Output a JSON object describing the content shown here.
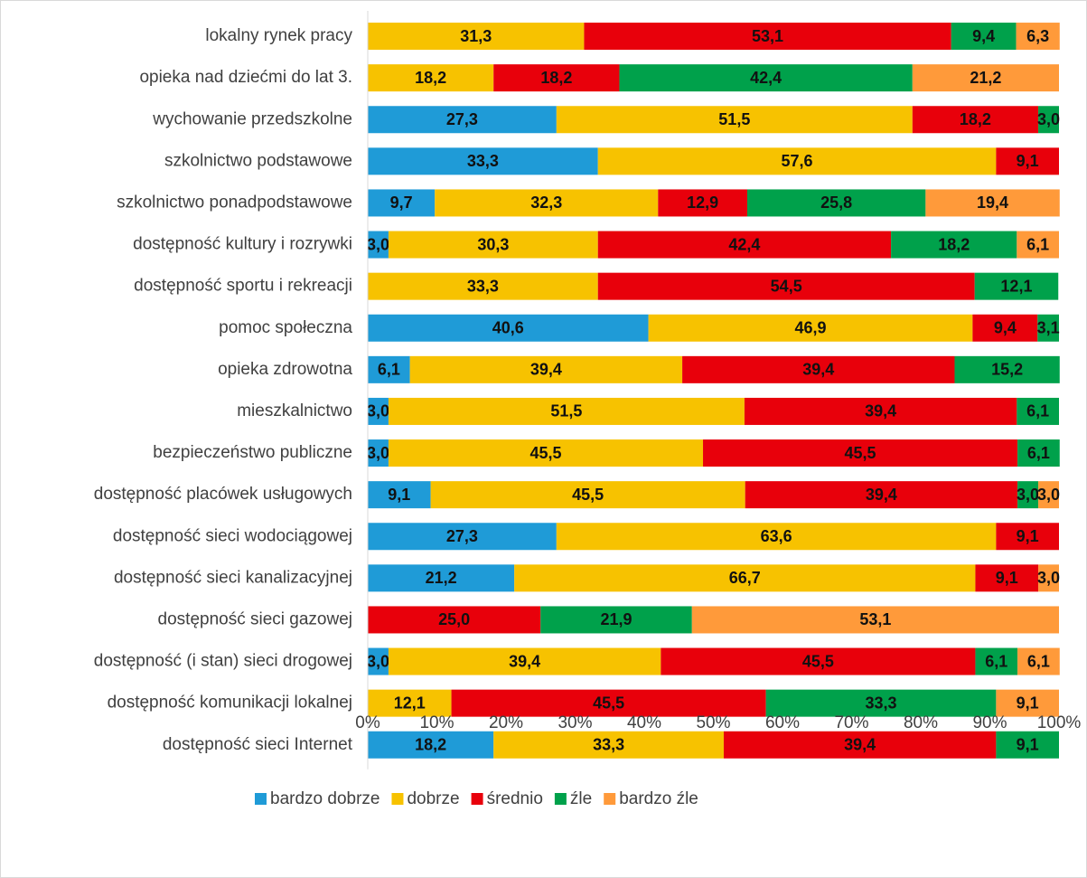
{
  "chart_data": {
    "type": "stacked_bar_horizontal",
    "categories": [
      "lokalny rynek pracy",
      "opieka nad dziećmi do lat 3.",
      "wychowanie przedszkolne",
      "szkolnictwo podstawowe",
      "szkolnictwo ponadpodstawowe",
      "dostępność kultury i rozrywki",
      "dostępność sportu i rekreacji",
      "pomoc społeczna",
      "opieka zdrowotna",
      "mieszkalnictwo",
      "bezpieczeństwo publiczne",
      "dostępność placówek usługowych",
      "dostępność sieci wodociągowej",
      "dostępność sieci kanalizacyjnej",
      "dostępność sieci gazowej",
      "dostępność (i stan) sieci drogowej",
      "dostępność komunikacji lokalnej",
      "dostępność sieci Internet"
    ],
    "series": [
      {
        "name": "bardzo dobrze",
        "color": "#1f9bd7",
        "values": [
          null,
          null,
          27.3,
          33.3,
          9.7,
          3.0,
          null,
          40.6,
          6.1,
          3.0,
          3.0,
          9.1,
          27.3,
          21.2,
          null,
          3.0,
          null,
          18.2
        ],
        "value_labels": [
          null,
          null,
          "27,3",
          "33,3",
          "9,7",
          "3,0",
          null,
          "40,6",
          "6,1",
          "3,0",
          "3,0",
          "9,1",
          "27,3",
          "21,2",
          null,
          "3,0",
          null,
          "18,2"
        ]
      },
      {
        "name": "dobrze",
        "color": "#f7c200",
        "values": [
          31.3,
          18.2,
          51.5,
          57.6,
          32.3,
          30.3,
          33.3,
          46.9,
          39.4,
          51.5,
          45.5,
          45.5,
          63.6,
          66.7,
          null,
          39.4,
          12.1,
          33.3
        ],
        "value_labels": [
          "31,3",
          "18,2",
          "51,5",
          "57,6",
          "32,3",
          "30,3",
          "33,3",
          "46,9",
          "39,4",
          "51,5",
          "45,5",
          "45,5",
          "63,6",
          "66,7",
          null,
          "39,4",
          "12,1",
          "33,3"
        ]
      },
      {
        "name": "średnio",
        "color": "#e8000b",
        "values": [
          53.1,
          18.2,
          18.2,
          9.1,
          12.9,
          42.4,
          54.5,
          9.4,
          39.4,
          39.4,
          45.5,
          39.4,
          9.1,
          9.1,
          25.0,
          45.5,
          45.5,
          39.4
        ],
        "value_labels": [
          "53,1",
          "18,2",
          "18,2",
          "9,1",
          "12,9",
          "42,4",
          "54,5",
          "9,4",
          "39,4",
          "39,4",
          "45,5",
          "39,4",
          "9,1",
          "9,1",
          "25,0",
          "45,5",
          "45,5",
          "39,4"
        ]
      },
      {
        "name": "źle",
        "color": "#00a14b",
        "values": [
          9.4,
          42.4,
          3.0,
          null,
          25.8,
          18.2,
          12.1,
          3.1,
          15.2,
          6.1,
          6.1,
          3.0,
          null,
          null,
          21.9,
          6.1,
          33.3,
          9.1
        ],
        "value_labels": [
          "9,4",
          "42,4",
          "3,0",
          null,
          "25,8",
          "18,2",
          "12,1",
          "3,1",
          "15,2",
          "6,1",
          "6,1",
          "3,0",
          null,
          null,
          "21,9",
          "6,1",
          "33,3",
          "9,1"
        ]
      },
      {
        "name": "bardzo źle",
        "color": "#ff9a3a",
        "values": [
          6.3,
          21.2,
          null,
          null,
          19.4,
          6.1,
          null,
          null,
          null,
          null,
          null,
          3.0,
          null,
          3.0,
          53.1,
          6.1,
          9.1,
          null
        ],
        "value_labels": [
          "6,3",
          "21,2",
          null,
          null,
          "19,4",
          "6,1",
          null,
          null,
          null,
          null,
          null,
          "3,0",
          null,
          "3,0",
          "53,1",
          "6,1",
          "9,1",
          null
        ]
      }
    ],
    "xlim": [
      0,
      100
    ],
    "xticks": [
      {
        "value": 0,
        "label": "0%"
      },
      {
        "value": 10,
        "label": "10%"
      },
      {
        "value": 20,
        "label": "20%"
      },
      {
        "value": 30,
        "label": "30%"
      },
      {
        "value": 40,
        "label": "40%"
      },
      {
        "value": 50,
        "label": "50%"
      },
      {
        "value": 60,
        "label": "60%"
      },
      {
        "value": 70,
        "label": "70%"
      },
      {
        "value": 80,
        "label": "80%"
      },
      {
        "value": 90,
        "label": "90%"
      },
      {
        "value": 100,
        "label": "100%"
      }
    ],
    "legend": "bottom"
  }
}
